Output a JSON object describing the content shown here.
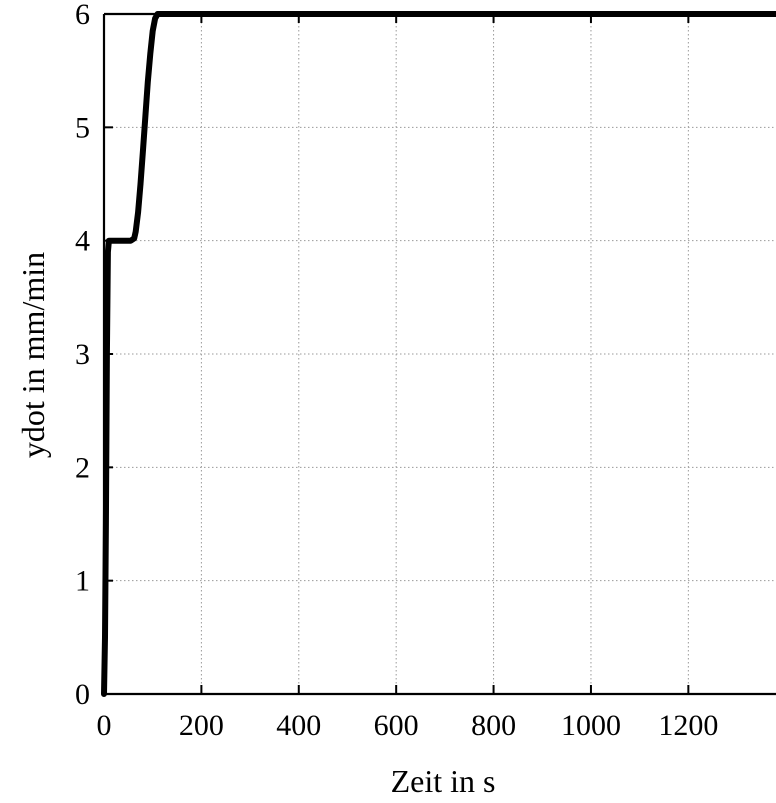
{
  "chart_data": {
    "type": "line",
    "xlabel": "Zeit in s",
    "ylabel": "ydot in mm/min",
    "xlim": [
      0,
      1380
    ],
    "ylim": [
      0,
      6
    ],
    "xticks": [
      0,
      200,
      400,
      600,
      800,
      1000,
      1200
    ],
    "yticks": [
      0,
      1,
      2,
      3,
      4,
      5,
      6
    ],
    "grid": true,
    "series": [
      {
        "color": "#000000",
        "x": [
          0,
          2,
          4,
          6,
          8,
          10,
          20,
          40,
          55,
          62,
          65,
          70,
          75,
          80,
          85,
          90,
          95,
          100,
          105,
          110,
          113,
          120,
          300,
          600,
          900,
          1200,
          1380
        ],
        "y": [
          0,
          0.5,
          1.5,
          3.0,
          3.9,
          4.0,
          4.0,
          4.0,
          4.0,
          4.02,
          4.08,
          4.25,
          4.5,
          4.8,
          5.1,
          5.4,
          5.65,
          5.85,
          5.96,
          6.0,
          6.0,
          6.0,
          6.0,
          6.0,
          6.0,
          6.0,
          6.0
        ]
      }
    ]
  }
}
